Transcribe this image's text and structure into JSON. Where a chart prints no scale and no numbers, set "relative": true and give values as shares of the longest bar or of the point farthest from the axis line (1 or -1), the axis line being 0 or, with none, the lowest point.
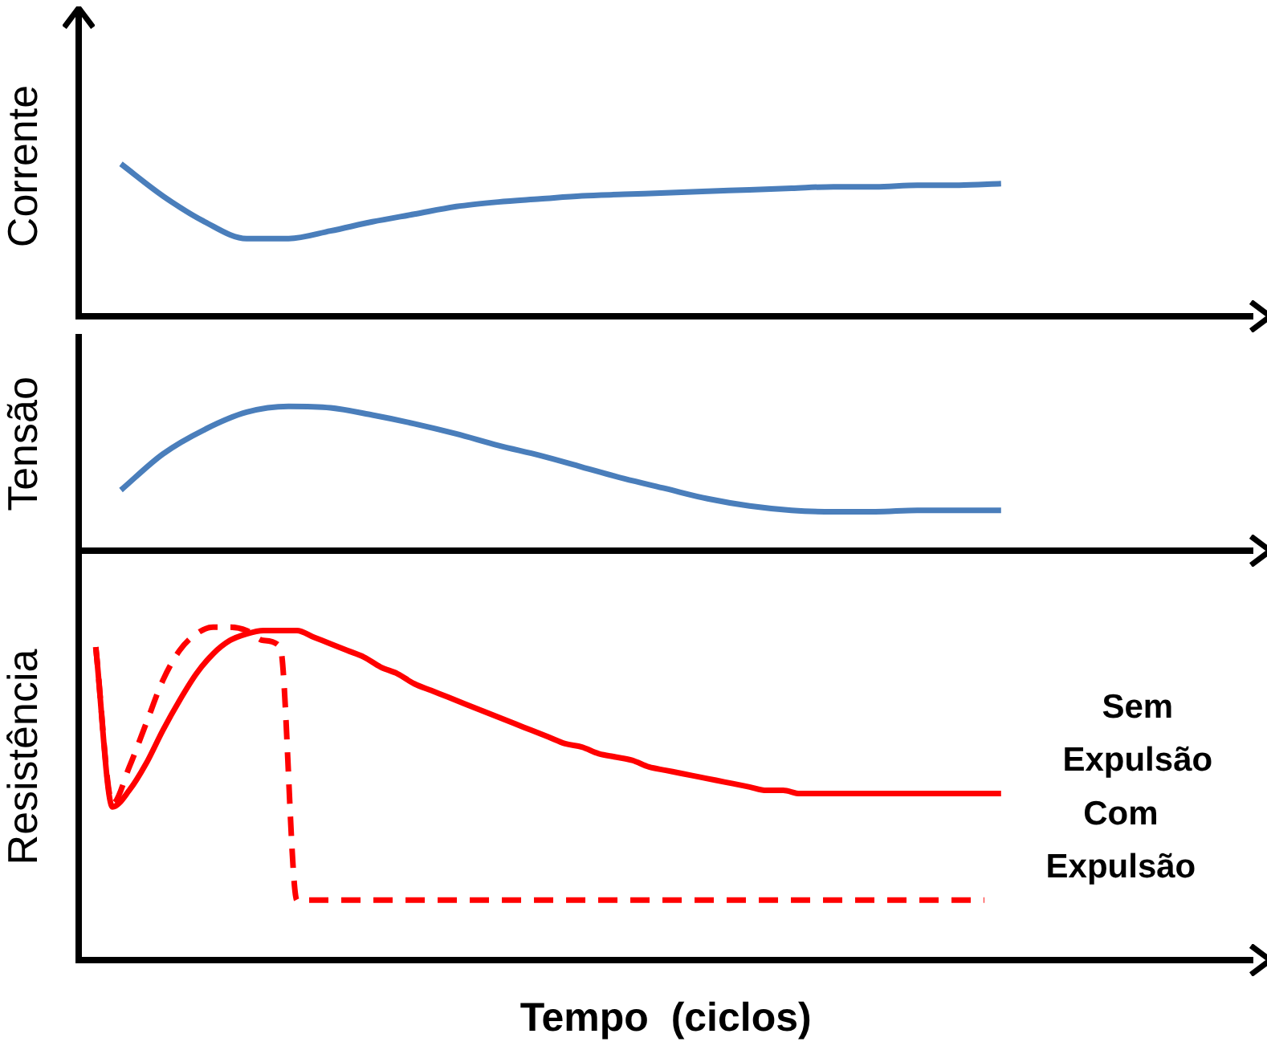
{
  "chart_data": [
    {
      "type": "line",
      "relative": true,
      "ylabel": "Corrente",
      "categories": [
        null,
        null,
        null,
        null,
        null,
        null,
        null,
        null,
        null,
        null,
        null,
        null,
        null,
        null,
        null,
        null,
        null,
        null,
        null,
        null,
        null,
        null,
        null,
        null,
        null,
        null,
        null,
        null,
        null
      ],
      "series": [
        {
          "color": "#4a7ebb",
          "values": [
            null,
            1,
            0.79,
            0.62,
            0.51,
            0.51,
            0.56,
            0.62,
            0.67,
            0.72,
            0.75,
            0.77,
            0.79,
            0.8,
            0.81,
            0.82,
            0.83,
            0.84,
            0.85,
            0.85,
            0.86,
            0.86,
            0.87,
            null,
            null,
            null,
            null,
            null,
            null
          ]
        }
      ]
    },
    {
      "type": "line",
      "relative": true,
      "ylabel": "Tensão",
      "categories": [
        null,
        null,
        null,
        null,
        null,
        null,
        null,
        null,
        null,
        null,
        null,
        null,
        null,
        null,
        null,
        null,
        null,
        null,
        null,
        null,
        null,
        null,
        null,
        null,
        null,
        null,
        null,
        null,
        null
      ],
      "series": [
        {
          "color": "#4a7ebb",
          "values": [
            null,
            0.42,
            0.67,
            0.84,
            0.96,
            1,
            0.99,
            0.94,
            0.88,
            0.81,
            0.73,
            0.66,
            0.58,
            0.5,
            0.43,
            0.36,
            0.31,
            0.28,
            0.27,
            0.27,
            0.28,
            0.28,
            0.28,
            null,
            null,
            null,
            null,
            null,
            null
          ]
        }
      ]
    },
    {
      "type": "line",
      "relative": true,
      "ylabel": "Resistência",
      "xlabel": "Tempo  (ciclos)",
      "categories": [
        null,
        null,
        null,
        null,
        null,
        null,
        null,
        null,
        null,
        null,
        null,
        null,
        null,
        null,
        null,
        null,
        null,
        null,
        null,
        null,
        null,
        null,
        null,
        null,
        null,
        null,
        null,
        null,
        null,
        null,
        null,
        null,
        null,
        null,
        null,
        null,
        null,
        null,
        null,
        null,
        null,
        null,
        null,
        null,
        null,
        null,
        null,
        null,
        null,
        null,
        null,
        null,
        null,
        null,
        null,
        null,
        null,
        null,
        null,
        null,
        null,
        null,
        null,
        null,
        null,
        null,
        null,
        null,
        null,
        null,
        null
      ],
      "series": [
        {
          "name": "Sem Expulsão",
          "color": "#ff0000",
          "line_style": "solid",
          "values": [
            null,
            0.94,
            0.46,
            0.51,
            0.59,
            0.69,
            0.78,
            0.86,
            0.92,
            0.96,
            0.98,
            0.99,
            0.99,
            0.99,
            0.97,
            0.95,
            0.93,
            0.91,
            0.88,
            0.86,
            0.83,
            0.81,
            0.79,
            0.77,
            0.75,
            0.73,
            0.71,
            0.69,
            0.67,
            0.65,
            0.64,
            0.62,
            0.61,
            0.6,
            0.58,
            0.57,
            0.56,
            0.55,
            0.54,
            0.53,
            0.52,
            0.51,
            0.51,
            0.5,
            0.5,
            0.5,
            0.5,
            0.5,
            0.5,
            0.5,
            0.5,
            0.5,
            0.5,
            0.5,
            0.5,
            0.5,
            null,
            null,
            null,
            null,
            null,
            null,
            null,
            null,
            null,
            null,
            null,
            null,
            null,
            null,
            null
          ]
        },
        {
          "name": "Com Expulsão",
          "color": "#ff0000",
          "line_style": "dashed",
          "values": [
            null,
            0.94,
            0.47,
            0.58,
            0.71,
            0.84,
            0.93,
            0.98,
            1,
            1,
            0.99,
            0.96,
            0.94,
            0.18,
            0.18,
            0.18,
            0.18,
            0.18,
            0.18,
            0.18,
            0.18,
            0.18,
            0.18,
            0.18,
            0.18,
            0.18,
            0.18,
            0.18,
            0.18,
            0.18,
            0.18,
            0.18,
            0.18,
            0.18,
            0.18,
            0.18,
            0.18,
            0.18,
            0.18,
            0.18,
            0.18,
            0.18,
            0.18,
            0.18,
            0.18,
            0.18,
            0.18,
            0.18,
            0.18,
            0.18,
            0.18,
            0.18,
            0.18,
            0.18,
            0.18,
            null,
            null,
            null,
            null,
            null,
            null,
            null,
            null,
            null,
            null,
            null,
            null,
            null,
            null,
            null,
            null
          ]
        }
      ]
    }
  ]
}
